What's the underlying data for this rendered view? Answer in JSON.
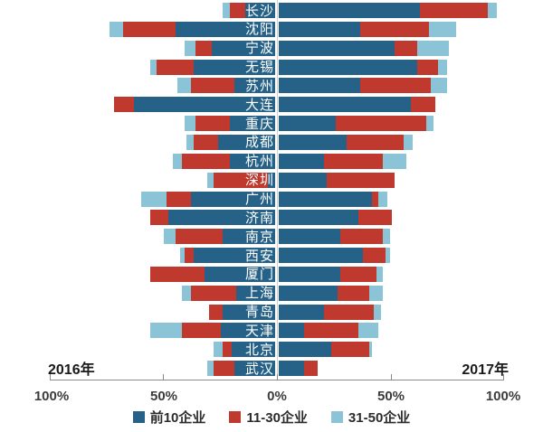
{
  "chart_data": {
    "type": "bar",
    "variant": "diverging-stacked-horizontal",
    "left_year_label": "2016年",
    "right_year_label": "2017年",
    "axis_ticks": [
      "100%",
      "50%",
      "0%",
      "50%",
      "100%"
    ],
    "grid": "center-line-only",
    "legend_position": "bottom-center",
    "series_order": [
      "前10企业",
      "11-30企业",
      "31-50企业"
    ],
    "legend": [
      {
        "label": "前10企业",
        "color": "#266288"
      },
      {
        "label": "11-30企业",
        "color": "#C0392F"
      },
      {
        "label": "31-50企业",
        "color": "#8AC4D6"
      }
    ],
    "unit": "percent",
    "axis_range_each_side": [
      0,
      100
    ],
    "cities": [
      {
        "name": "长沙",
        "y2016": [
          13,
          7,
          3
        ],
        "y2017": [
          62,
          30,
          4
        ]
      },
      {
        "name": "沈阳",
        "y2016": [
          44,
          23,
          6
        ],
        "y2017": [
          36,
          30,
          12
        ]
      },
      {
        "name": "宁波",
        "y2016": [
          28,
          7,
          5
        ],
        "y2017": [
          51,
          10,
          14
        ]
      },
      {
        "name": "无锡",
        "y2016": [
          36,
          16,
          3
        ],
        "y2017": [
          61,
          9,
          4
        ]
      },
      {
        "name": "苏州",
        "y2016": [
          18,
          19,
          6
        ],
        "y2017": [
          36,
          31,
          7
        ]
      },
      {
        "name": "大连",
        "y2016": [
          62,
          9,
          0
        ],
        "y2017": [
          58,
          11,
          0
        ]
      },
      {
        "name": "重庆",
        "y2016": [
          20,
          15,
          5
        ],
        "y2017": [
          25,
          40,
          3
        ]
      },
      {
        "name": "成都",
        "y2016": [
          25,
          11,
          3
        ],
        "y2017": [
          30,
          25,
          4
        ]
      },
      {
        "name": "杭州",
        "y2016": [
          20,
          21,
          4
        ],
        "y2017": [
          20,
          26,
          10
        ]
      },
      {
        "name": "深圳",
        "y2016": [
          3,
          24,
          3
        ],
        "y2017": [
          21,
          30,
          0
        ]
      },
      {
        "name": "广州",
        "y2016": [
          37,
          11,
          11
        ],
        "y2017": [
          41,
          3,
          4
        ]
      },
      {
        "name": "济南",
        "y2016": [
          47,
          8,
          0
        ],
        "y2017": [
          35,
          15,
          0
        ]
      },
      {
        "name": "南京",
        "y2016": [
          23,
          21,
          5
        ],
        "y2017": [
          27,
          19,
          3
        ]
      },
      {
        "name": "西安",
        "y2016": [
          36,
          4,
          2
        ],
        "y2017": [
          37,
          10,
          2
        ]
      },
      {
        "name": "厦门",
        "y2016": [
          31,
          24,
          0
        ],
        "y2017": [
          27,
          16,
          3
        ]
      },
      {
        "name": "上海",
        "y2016": [
          17,
          20,
          4
        ],
        "y2017": [
          26,
          14,
          6
        ]
      },
      {
        "name": "青岛",
        "y2016": [
          23,
          6,
          0
        ],
        "y2017": [
          20,
          22,
          3
        ]
      },
      {
        "name": "天津",
        "y2016": [
          24,
          17,
          14
        ],
        "y2017": [
          11,
          24,
          9
        ]
      },
      {
        "name": "北京",
        "y2016": [
          19,
          4,
          4
        ],
        "y2017": [
          23,
          17,
          1
        ]
      },
      {
        "name": "武汉",
        "y2016": [
          18,
          9,
          3
        ],
        "y2017": [
          11,
          6,
          0
        ]
      }
    ]
  }
}
